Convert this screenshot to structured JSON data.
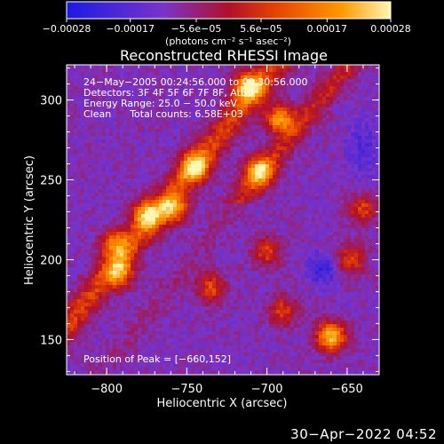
{
  "chart_data": {
    "type": "heatmap",
    "title": "Reconstructed RHESSI Image",
    "xlabel": "Heliocentric X (arcsec)",
    "ylabel": "Heliocentric Y (arcsec)",
    "xlim": [
      -825,
      -630
    ],
    "ylim": [
      128,
      322
    ],
    "x_ticks": [
      -800,
      -750,
      -700,
      -650
    ],
    "x_tick_labels": [
      "−800",
      "−750",
      "−700",
      "−650"
    ],
    "y_ticks": [
      150,
      200,
      250,
      300
    ],
    "y_tick_labels": [
      "150",
      "200",
      "250",
      "300"
    ],
    "colorbar": {
      "min": -0.00028,
      "max": 0.00028,
      "ticks": [
        -0.00028,
        -0.00017,
        -5.6e-05,
        5.6e-05,
        0.00017,
        0.00028
      ],
      "tick_labels": [
        "−0.00028",
        "−0.00017",
        "−5.6e−05",
        "5.6e−05",
        "0.00017",
        "0.00028"
      ],
      "units_label": "(photons cm⁻² s⁻¹ asec⁻²)",
      "colors": [
        "#1a1ae6",
        "#7a34c8",
        "#b0102a",
        "#e84400",
        "#ff9a00",
        "#fff6b0"
      ]
    },
    "annotations": [
      "24−May−2005 00:24:56.000 to 00:30:56.000",
      "Detectors: 3F 4F 5F 6F 7F 8F, Att 0",
      "Energy Range: 25.0 − 50.0 keV",
      "Clean      Total counts: 6.58E+03"
    ],
    "peak_label": "Position of Peak = [−660,152]",
    "peak": [
      -660,
      152
    ],
    "features": [
      {
        "x": -660,
        "y": 152,
        "level": 1.0
      },
      {
        "x": -712,
        "y": 308,
        "level": 0.95
      },
      {
        "x": -692,
        "y": 288,
        "level": 0.85
      },
      {
        "x": -745,
        "y": 258,
        "level": 0.85
      },
      {
        "x": -705,
        "y": 255,
        "level": 0.9
      },
      {
        "x": -775,
        "y": 228,
        "level": 0.8
      },
      {
        "x": -795,
        "y": 210,
        "level": 0.7
      },
      {
        "x": -792,
        "y": 192,
        "level": 0.7
      },
      {
        "x": -758,
        "y": 232,
        "level": 0.75
      },
      {
        "x": -735,
        "y": 182,
        "level": 0.55
      },
      {
        "x": -690,
        "y": 168,
        "level": 0.5
      },
      {
        "x": -700,
        "y": 205,
        "level": 0.5
      },
      {
        "x": -648,
        "y": 200,
        "level": 0.55
      },
      {
        "x": -640,
        "y": 232,
        "level": 0.5
      }
    ],
    "grid": false
  },
  "footer": {
    "timestamp": "30−Apr−2022 04:52"
  }
}
